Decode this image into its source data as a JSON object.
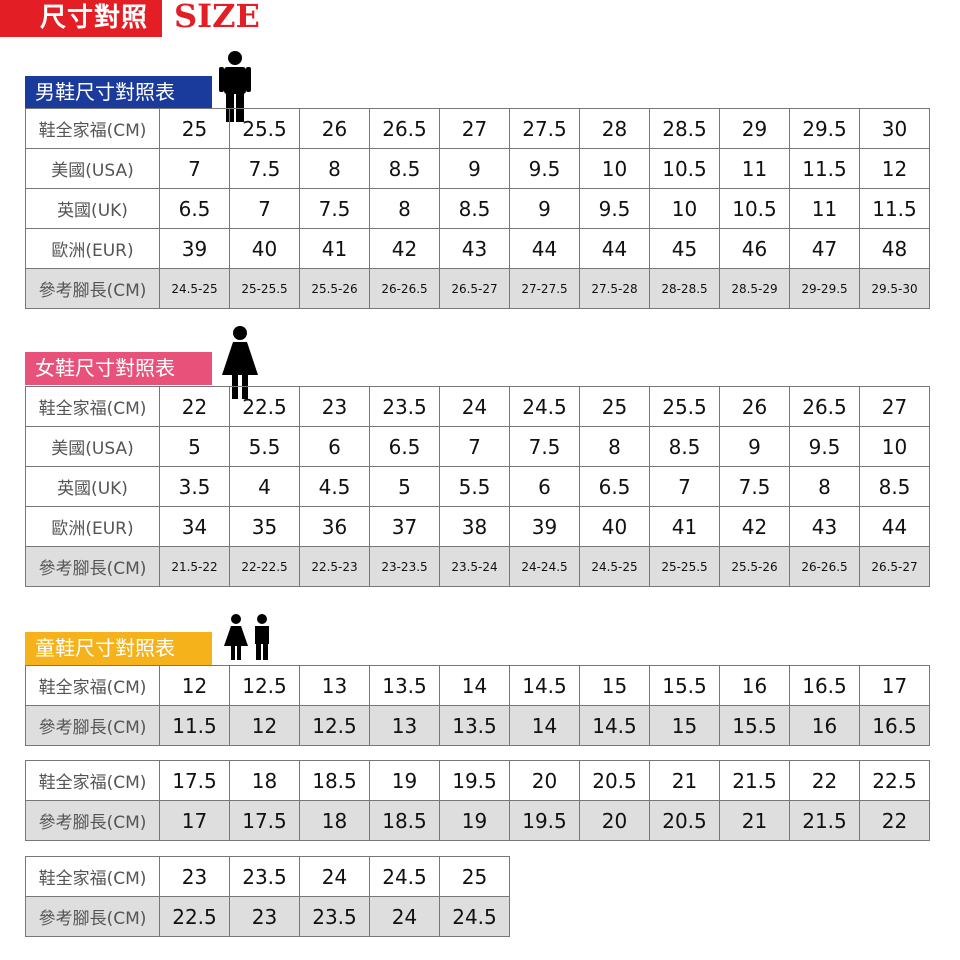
{
  "header": {
    "title": "尺寸對照",
    "size_word": "SIZE",
    "color": "#e31e24"
  },
  "tables": [
    {
      "id": "men",
      "title": "男鞋尺寸對照表",
      "color": "#1a3a9c",
      "icon": "man-icon",
      "small_last": true,
      "rows": [
        {
          "label": "鞋全家福(CM)",
          "values": [
            "25",
            "25.5",
            "26",
            "26.5",
            "27",
            "27.5",
            "28",
            "28.5",
            "29",
            "29.5",
            "30"
          ]
        },
        {
          "label": "美國(USA)",
          "values": [
            "7",
            "7.5",
            "8",
            "8.5",
            "9",
            "9.5",
            "10",
            "10.5",
            "11",
            "11.5",
            "12"
          ]
        },
        {
          "label": "英國(UK)",
          "values": [
            "6.5",
            "7",
            "7.5",
            "8",
            "8.5",
            "9",
            "9.5",
            "10",
            "10.5",
            "11",
            "11.5"
          ]
        },
        {
          "label": "歐洲(EUR)",
          "values": [
            "39",
            "40",
            "41",
            "42",
            "43",
            "44",
            "44",
            "45",
            "46",
            "47",
            "48"
          ]
        },
        {
          "label": "參考腳長(CM)",
          "values": [
            "24.5-25",
            "25-25.5",
            "25.5-26",
            "26-26.5",
            "26.5-27",
            "27-27.5",
            "27.5-28",
            "28-28.5",
            "28.5-29",
            "29-29.5",
            "29.5-30"
          ]
        }
      ]
    },
    {
      "id": "women",
      "title": "女鞋尺寸對照表",
      "color": "#e8527a",
      "icon": "woman-icon",
      "small_last": true,
      "rows": [
        {
          "label": "鞋全家福(CM)",
          "values": [
            "22",
            "22.5",
            "23",
            "23.5",
            "24",
            "24.5",
            "25",
            "25.5",
            "26",
            "26.5",
            "27"
          ]
        },
        {
          "label": "美國(USA)",
          "values": [
            "5",
            "5.5",
            "6",
            "6.5",
            "7",
            "7.5",
            "8",
            "8.5",
            "9",
            "9.5",
            "10"
          ]
        },
        {
          "label": "英國(UK)",
          "values": [
            "3.5",
            "4",
            "4.5",
            "5",
            "5.5",
            "6",
            "6.5",
            "7",
            "7.5",
            "8",
            "8.5"
          ]
        },
        {
          "label": "歐洲(EUR)",
          "values": [
            "34",
            "35",
            "36",
            "37",
            "38",
            "39",
            "40",
            "41",
            "42",
            "43",
            "44"
          ]
        },
        {
          "label": "參考腳長(CM)",
          "values": [
            "21.5-22",
            "22-22.5",
            "22.5-23",
            "23-23.5",
            "23.5-24",
            "24-24.5",
            "24.5-25",
            "25-25.5",
            "25.5-26",
            "26-26.5",
            "26.5-27"
          ]
        }
      ]
    },
    {
      "id": "kids1",
      "title": "童鞋尺寸對照表",
      "color": "#f5b21a",
      "icon": "kids-icon",
      "small_last": false,
      "rows": [
        {
          "label": "鞋全家福(CM)",
          "values": [
            "12",
            "12.5",
            "13",
            "13.5",
            "14",
            "14.5",
            "15",
            "15.5",
            "16",
            "16.5",
            "17"
          ]
        },
        {
          "label": "參考腳長(CM)",
          "values": [
            "11.5",
            "12",
            "12.5",
            "13",
            "13.5",
            "14",
            "14.5",
            "15",
            "15.5",
            "16",
            "16.5"
          ]
        }
      ]
    },
    {
      "id": "kids2",
      "small_last": false,
      "rows": [
        {
          "label": "鞋全家福(CM)",
          "values": [
            "17.5",
            "18",
            "18.5",
            "19",
            "19.5",
            "20",
            "20.5",
            "21",
            "21.5",
            "22",
            "22.5"
          ]
        },
        {
          "label": "參考腳長(CM)",
          "values": [
            "17",
            "17.5",
            "18",
            "18.5",
            "19",
            "19.5",
            "20",
            "20.5",
            "21",
            "21.5",
            "22"
          ]
        }
      ]
    },
    {
      "id": "kids3",
      "small_last": false,
      "rows": [
        {
          "label": "鞋全家福(CM)",
          "values": [
            "23",
            "23.5",
            "24",
            "24.5",
            "25"
          ]
        },
        {
          "label": "參考腳長(CM)",
          "values": [
            "22.5",
            "23",
            "23.5",
            "24",
            "24.5"
          ]
        }
      ]
    }
  ]
}
